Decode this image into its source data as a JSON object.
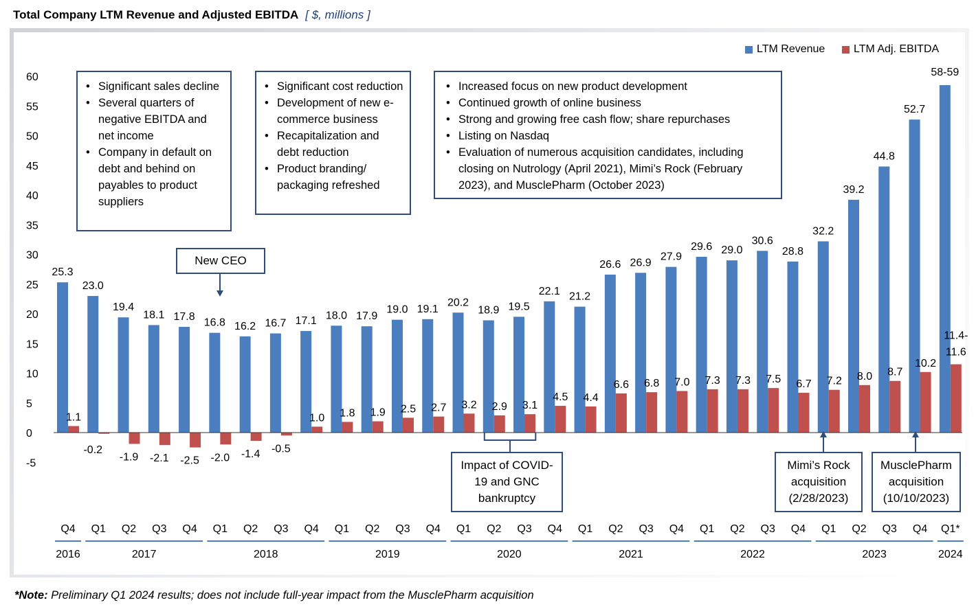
{
  "title": "Total Company LTM Revenue and Adjusted EBITDA",
  "units": "[ $, millions ]",
  "footnote_bold": "*Note:",
  "footnote_text": " Preliminary Q1 2024 results; does not include full-year impact from the MusclePharm acquisition",
  "colors": {
    "revenue": "#4a7ebf",
    "ebitda": "#c0504d",
    "box_border": "#2e4d7b",
    "axis": "#333333",
    "year_line": "#4a7ebf"
  },
  "legend": {
    "revenue": "LTM Revenue",
    "ebitda": "LTM Adj. EBITDA"
  },
  "boxes": [
    {
      "id": "box-2016-2017",
      "items": [
        "Significant sales decline",
        "Several quarters of negative EBITDA  and net income",
        "Company in default on debt and behind on payables to product suppliers"
      ]
    },
    {
      "id": "box-2018-2019",
      "items": [
        "Significant cost reduction",
        "Development of new e-commerce business",
        "Recapitalization and debt reduction",
        "Product branding/ packaging refreshed"
      ]
    },
    {
      "id": "box-2020-2023",
      "items": [
        "Increased focus on new product development",
        "Continued growth of online business",
        "Strong and growing free cash flow; share repurchases",
        "Listing on Nasdaq",
        "Evaluation of numerous acquisition candidates, including closing on Nutrology (April 2021), Mimi’s Rock (February 2023), and MusclePharm (October 2023)"
      ]
    }
  ],
  "callouts": {
    "new_ceo": "New CEO",
    "covid": "Impact of COVID-19 and GNC bankruptcy",
    "mimis": "Mimi’s Rock acquisition (2/28/2023)",
    "musclepharm": "MusclePharm acquisition (10/10/2023)"
  },
  "chart_data": {
    "type": "bar",
    "ylim": [
      -5,
      60
    ],
    "y_ticks": [
      60,
      55,
      50,
      45,
      40,
      35,
      30,
      25,
      20,
      15,
      10,
      5,
      0,
      -5
    ],
    "y_tick_labels": [
      "60",
      "55",
      "50",
      "45",
      "40",
      "35",
      "30",
      "25",
      "20",
      "15",
      "10",
      "5",
      "0",
      "-5"
    ],
    "grid": false,
    "legend_position": "top-right",
    "categories": [
      "Q4",
      "Q1",
      "Q2",
      "Q3",
      "Q4",
      "Q1",
      "Q2",
      "Q3",
      "Q4",
      "Q1",
      "Q2",
      "Q3",
      "Q4",
      "Q1",
      "Q2",
      "Q3",
      "Q4",
      "Q1",
      "Q2",
      "Q3",
      "Q4",
      "Q1",
      "Q2",
      "Q3",
      "Q4",
      "Q1",
      "Q2",
      "Q3",
      "Q4",
      "Q1*"
    ],
    "years": [
      {
        "label": "2016",
        "start": 0,
        "end": 0
      },
      {
        "label": "2017",
        "start": 1,
        "end": 4
      },
      {
        "label": "2018",
        "start": 5,
        "end": 8
      },
      {
        "label": "2019",
        "start": 9,
        "end": 12
      },
      {
        "label": "2020",
        "start": 13,
        "end": 16
      },
      {
        "label": "2021",
        "start": 17,
        "end": 20
      },
      {
        "label": "2022",
        "start": 21,
        "end": 24
      },
      {
        "label": "2023",
        "start": 25,
        "end": 28
      },
      {
        "label": "2024",
        "start": 29,
        "end": 29
      }
    ],
    "series": [
      {
        "name": "LTM Revenue",
        "values": [
          25.3,
          23.0,
          19.4,
          18.1,
          17.8,
          16.8,
          16.2,
          16.7,
          17.1,
          18.0,
          17.9,
          19.0,
          19.1,
          20.2,
          18.9,
          19.5,
          22.1,
          21.2,
          26.6,
          26.9,
          27.9,
          29.6,
          29.0,
          30.6,
          28.8,
          32.2,
          39.2,
          44.8,
          52.7,
          58.5
        ],
        "labels": [
          "25.3",
          "23.0",
          "19.4",
          "18.1",
          "17.8",
          "16.8",
          "16.2",
          "16.7",
          "17.1",
          "18.0",
          "17.9",
          "19.0",
          "19.1",
          "20.2",
          "18.9",
          "19.5",
          "22.1",
          "21.2",
          "26.6",
          "26.9",
          "27.9",
          "29.6",
          "29.0",
          "30.6",
          "28.8",
          "32.2",
          "39.2",
          "44.8",
          "52.7",
          "58-59"
        ]
      },
      {
        "name": "LTM Adj. EBITDA",
        "values": [
          1.1,
          -0.2,
          -1.9,
          -2.1,
          -2.5,
          -2.0,
          -1.4,
          -0.5,
          1.0,
          1.8,
          1.9,
          2.5,
          2.7,
          3.2,
          2.9,
          3.1,
          4.5,
          4.4,
          6.6,
          6.8,
          7.0,
          7.3,
          7.3,
          7.5,
          6.7,
          7.2,
          8.0,
          8.7,
          10.2,
          11.5
        ],
        "labels": [
          "1.1",
          "-0.2",
          "-1.9",
          "-2.1",
          "-2.5",
          "-2.0",
          "-1.4",
          "-0.5",
          "1.0",
          "1.8",
          "1.9",
          "2.5",
          "2.7",
          "3.2",
          "2.9",
          "3.1",
          "4.5",
          "4.4",
          "6.6",
          "6.8",
          "7.0",
          "7.3",
          "7.3",
          "7.5",
          "6.7",
          "7.2",
          "8.0",
          "8.7",
          "10.2",
          "11.4-11.6"
        ]
      }
    ]
  }
}
